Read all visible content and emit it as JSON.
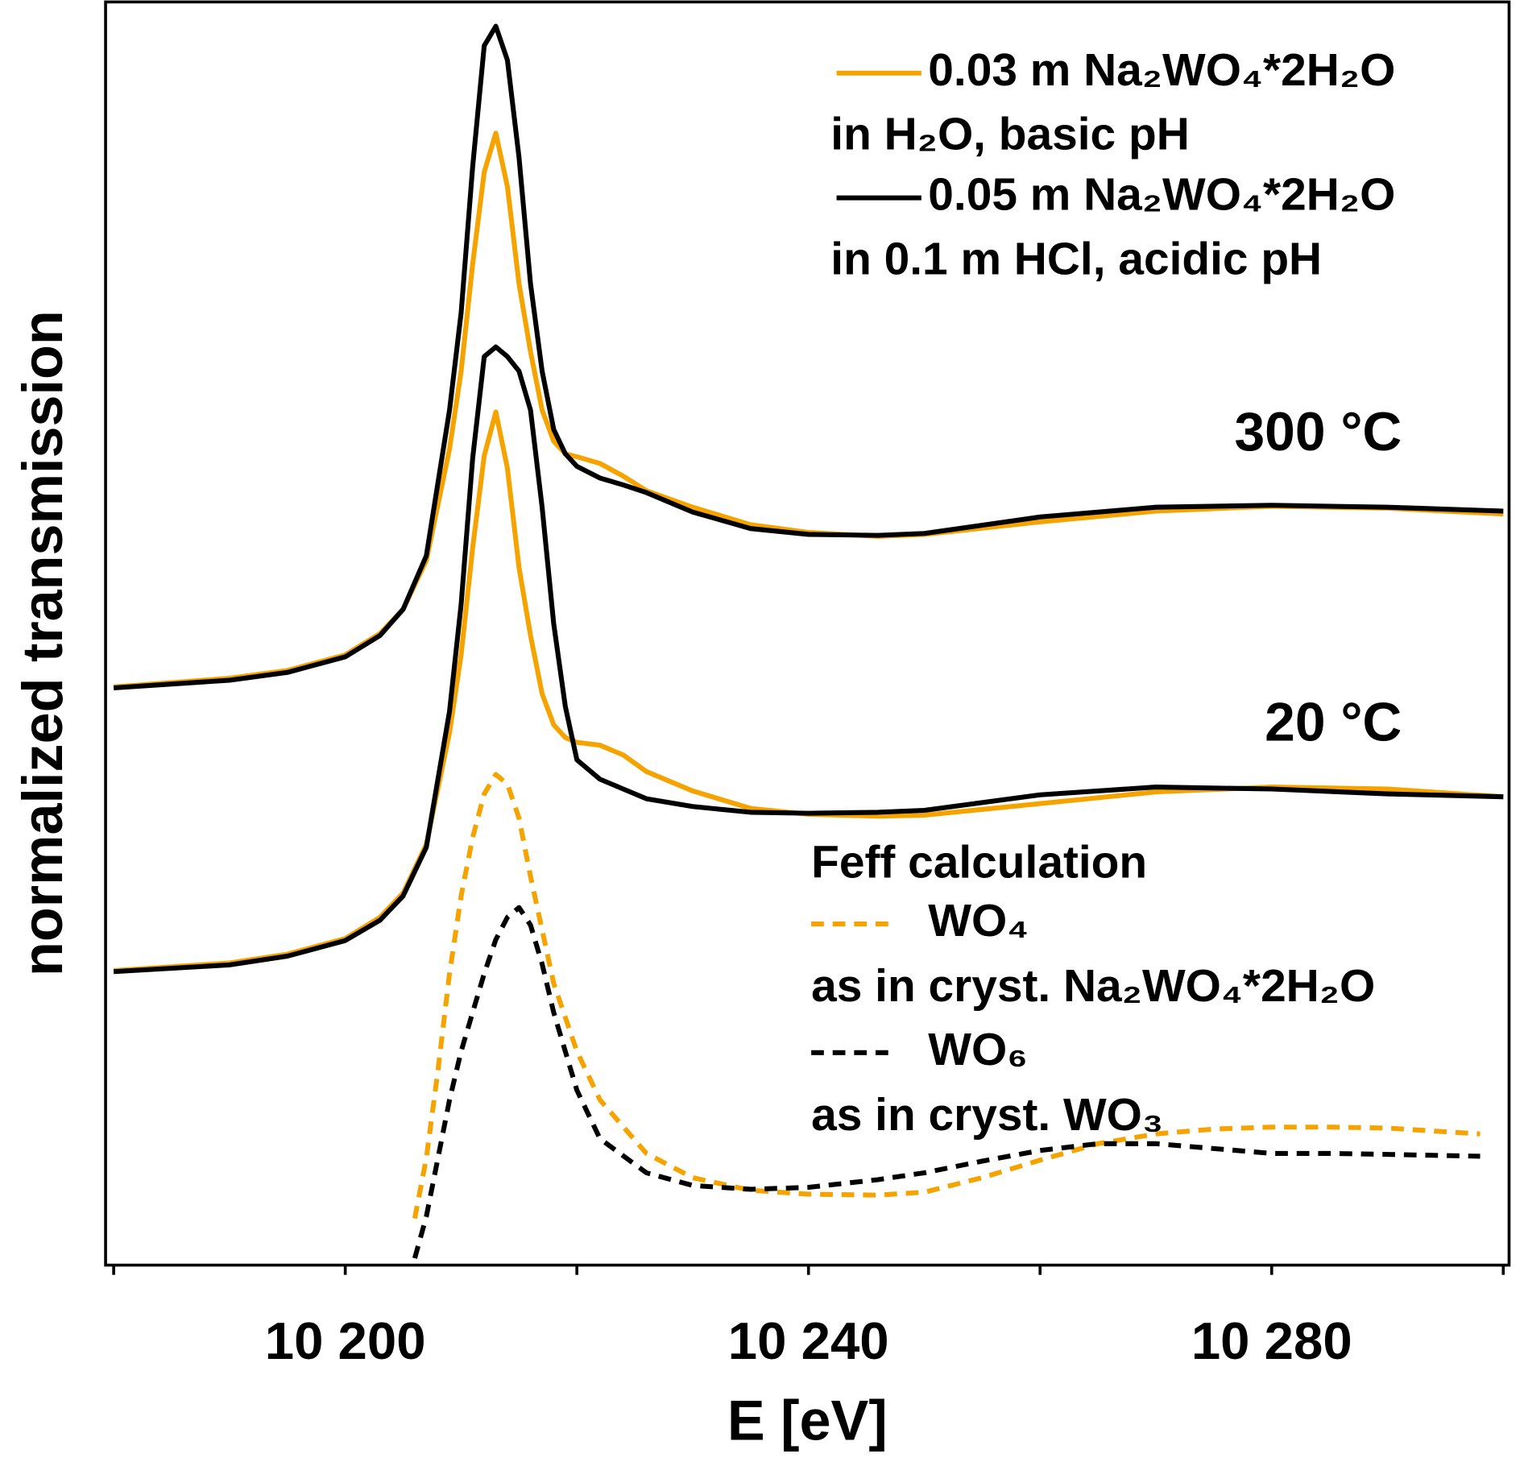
{
  "chart_data": {
    "type": "line",
    "x_label": "E [eV]",
    "y_label": "normalized transmission",
    "xlim": [
      10179.3,
      10300.5
    ],
    "ylim": [
      0,
      1300
    ],
    "xticks": [
      {
        "value": 10200,
        "label": "10 200"
      },
      {
        "value": 10240,
        "label": "10 240"
      },
      {
        "value": 10280,
        "label": "10 280"
      }
    ],
    "xminorticks": [
      10180,
      10220,
      10260,
      10300
    ],
    "annotations": [
      "300 °C",
      "20 °C"
    ],
    "feff_legend_title": "Feff calculation",
    "series": [
      {
        "name": "0.03 m Na₂WO₄*2H₂O",
        "legend_note": "in H₂O, basic pH",
        "color": "#f5a300",
        "dashed": false,
        "x": [
          10180,
          10190,
          10195,
          10200,
          10203,
          10205,
          10207,
          10209,
          10210,
          10211,
          10212,
          10213,
          10214,
          10215,
          10216,
          10217,
          10218,
          10219,
          10220,
          10222,
          10224,
          10226,
          10230,
          10235,
          10240,
          10246,
          10250,
          10260,
          10270,
          10280,
          10290,
          10300
        ],
        "values": [
          595,
          604,
          612,
          628,
          650,
          675,
          725,
          840,
          920,
          1030,
          1125,
          1165,
          1110,
          1010,
          940,
          880,
          848,
          835,
          832,
          825,
          812,
          797,
          780,
          762,
          754,
          750,
          752,
          765,
          776,
          781,
          779,
          773
        ]
      },
      {
        "name": "0.05 m Na₂WO₄*2H₂O",
        "legend_note": "in 0.1 m HCl, acidic pH",
        "color": "#000000",
        "dashed": false,
        "x": [
          10180,
          10190,
          10195,
          10200,
          10203,
          10205,
          10207,
          10209,
          10210,
          10211,
          10212,
          10213,
          10214,
          10215,
          10216,
          10217,
          10218,
          10219,
          10220,
          10222,
          10224,
          10226,
          10230,
          10235,
          10240,
          10246,
          10250,
          10260,
          10270,
          10280,
          10290,
          10300
        ],
        "values": [
          594,
          602,
          610,
          626,
          648,
          675,
          730,
          880,
          980,
          1130,
          1255,
          1275,
          1240,
          1140,
          1010,
          920,
          860,
          835,
          822,
          810,
          803,
          795,
          775,
          758,
          752,
          751,
          753,
          770,
          780,
          782,
          780,
          776
        ]
      },
      {
        "color": "#f5a300",
        "dashed": false,
        "x": [
          10180,
          10190,
          10195,
          10200,
          10203,
          10205,
          10207,
          10209,
          10210,
          10211,
          10212,
          10213,
          10214,
          10215,
          10216,
          10217,
          10218,
          10219,
          10220,
          10222,
          10224,
          10226,
          10230,
          10235,
          10240,
          10246,
          10250,
          10260,
          10270,
          10280,
          10290,
          10300
        ],
        "values": [
          303,
          311,
          320,
          336,
          358,
          383,
          433,
          548,
          628,
          738,
          833,
          878,
          820,
          718,
          648,
          588,
          556,
          543,
          538,
          535,
          525,
          508,
          488,
          470,
          464,
          462,
          463,
          475,
          487,
          492,
          490,
          482
        ]
      },
      {
        "color": "#000000",
        "dashed": false,
        "x": [
          10180,
          10190,
          10195,
          10200,
          10203,
          10205,
          10207,
          10209,
          10210,
          10211,
          10212,
          10213,
          10214,
          10215,
          10216,
          10217,
          10218,
          10219,
          10220,
          10222,
          10224,
          10226,
          10230,
          10235,
          10240,
          10246,
          10250,
          10260,
          10270,
          10280,
          10290,
          10300
        ],
        "values": [
          302,
          309,
          318,
          334,
          355,
          380,
          430,
          570,
          680,
          830,
          935,
          945,
          935,
          920,
          880,
          780,
          660,
          575,
          520,
          500,
          490,
          480,
          472,
          466,
          465,
          466,
          468,
          484,
          492,
          490,
          485,
          482
        ]
      },
      {
        "name": "WO₄",
        "legend_note": "as in cryst. Na₂WO₄*2H₂O",
        "color": "#f5a300",
        "dashed": true,
        "x": [
          10206,
          10207,
          10208,
          10209,
          10210,
          10211,
          10212,
          10213,
          10214,
          10215,
          10216,
          10217,
          10218,
          10220,
          10222,
          10226,
          10230,
          10235,
          10240,
          10246,
          10250,
          10255,
          10260,
          10265,
          10270,
          10275,
          10280,
          10285,
          10290,
          10298
        ],
        "values": [
          48,
          110,
          200,
          300,
          380,
          440,
          485,
          505,
          495,
          460,
          400,
          345,
          290,
          220,
          170,
          115,
          90,
          77,
          73,
          72,
          75,
          90,
          108,
          125,
          135,
          140,
          142,
          142,
          141,
          135
        ]
      },
      {
        "name": "WO₆",
        "legend_note": "as in cryst. WO₃",
        "color": "#000000",
        "dashed": true,
        "x": [
          10206,
          10207,
          10208,
          10209,
          10210,
          10211,
          10212,
          10213,
          10214,
          10215,
          10216,
          10217,
          10218,
          10220,
          10222,
          10226,
          10230,
          10235,
          10240,
          10246,
          10250,
          10255,
          10260,
          10265,
          10270,
          10275,
          10280,
          10285,
          10290,
          10298
        ],
        "values": [
          7,
          50,
          110,
          170,
          220,
          260,
          300,
          335,
          358,
          368,
          350,
          310,
          260,
          180,
          130,
          95,
          82,
          78,
          80,
          88,
          95,
          107,
          118,
          125,
          125,
          120,
          115,
          115,
          114,
          112
        ]
      }
    ]
  }
}
